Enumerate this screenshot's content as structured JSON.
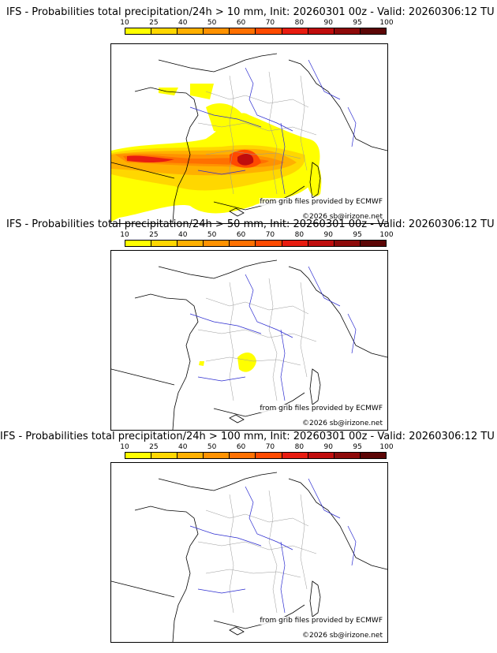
{
  "colorbar": {
    "ticks": [
      "10",
      "25",
      "40",
      "50",
      "60",
      "70",
      "80",
      "90",
      "95",
      "100"
    ],
    "colors": [
      "#ffff00",
      "#ffd700",
      "#ffb000",
      "#ff9200",
      "#ff7000",
      "#ff4a00",
      "#e81c10",
      "#c00d0d",
      "#8e0a0a",
      "#5c0606"
    ]
  },
  "panels": [
    {
      "title": "IFS - Probabilities total precipitation/24h > 10 mm, Init: 20260301 00z - Valid: 20260306:12 TU",
      "credit_source": "from grib files provided by ECMWF",
      "credit_copyright": "©2026 sb@irizone.net"
    },
    {
      "title": "IFS - Probabilities total precipitation/24h > 50 mm, Init: 20260301 00z - Valid: 20260306:12 TU",
      "credit_source": "from grib files provided by ECMWF",
      "credit_copyright": "©2026 sb@irizone.net"
    },
    {
      "title": "IFS - Probabilities total precipitation/24h > 100 mm, Init: 20260301 00z - Valid: 20260306:12 TU",
      "credit_source": "from grib files provided by ECMWF",
      "credit_copyright": "©2026 sb@irizone.net"
    }
  ],
  "colors": {
    "coastline": "#000000",
    "rivers": "#2a2ad0",
    "borders": "#9a9a9a"
  }
}
